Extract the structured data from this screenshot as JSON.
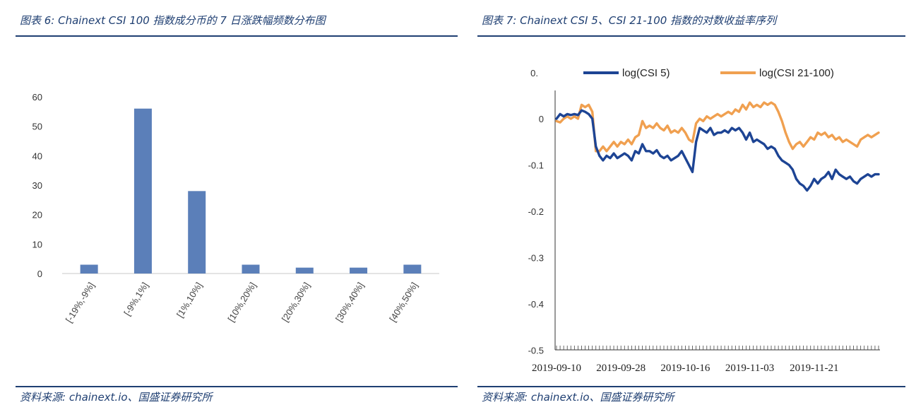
{
  "figures": [
    {
      "title": "图表 6:  Chainext CSI 100 指数成分币的 7 日涨跌幅频数分布图",
      "source": "资料来源:  chainext.io、国盛证券研究所"
    },
    {
      "title": "图表 7:  Chainext CSI 5、CSI 21-100 指数的对数收益率序列",
      "source": "资料来源:  chainext.io、国盛证券研究所"
    }
  ],
  "colors": {
    "accent": "#1f3f72",
    "bar": "#5b7fb9",
    "csi5": "#1d4494",
    "csi21": "#f0a050"
  },
  "chart_data": [
    {
      "type": "bar",
      "categories": [
        "[-19%,-9%]",
        "[-9%,1%]",
        "[1%,10%]",
        "[10%,20%]",
        "[20%,30%]",
        "[30%,40%]",
        "[40%,50%]"
      ],
      "values": [
        3,
        56,
        28,
        3,
        2,
        2,
        3
      ],
      "ylim": [
        0,
        60
      ],
      "yticks": [
        "0",
        "10",
        "20",
        "30",
        "40",
        "50",
        "60"
      ],
      "grid": false
    },
    {
      "type": "line",
      "ylim": [
        -0.5,
        0.05
      ],
      "yticks": [
        "-0.5",
        "-0.4",
        "-0.3",
        "-0.2",
        "-0.1",
        "0"
      ],
      "top_tick_label": "0.",
      "xticks": [
        "2019-09-10",
        "2019-09-28",
        "2019-10-16",
        "2019-11-03",
        "2019-11-21"
      ],
      "legend_position": "top",
      "grid": false,
      "series": [
        {
          "name": "log(CSI 5)",
          "x": [
            0,
            1,
            2,
            3,
            4,
            5,
            6,
            7,
            8,
            9,
            10,
            11,
            12,
            13,
            14,
            15,
            16,
            17,
            18,
            19,
            20,
            21,
            22,
            23,
            24,
            25,
            26,
            27,
            28,
            29,
            30,
            31,
            32,
            33,
            34,
            35,
            36,
            37,
            38,
            39,
            40,
            41,
            42,
            43,
            44,
            45,
            46,
            47,
            48,
            49,
            50,
            51,
            52,
            53,
            54,
            55,
            56,
            57,
            58,
            59,
            60,
            61,
            62,
            63,
            64,
            65,
            66,
            67,
            68,
            69,
            70,
            71,
            72,
            73,
            74,
            75,
            76,
            77,
            78,
            79,
            80,
            81,
            82,
            83,
            84,
            85,
            86,
            87,
            88,
            89,
            90
          ],
          "values": [
            0.0,
            0.01,
            0.005,
            0.01,
            0.008,
            0.01,
            0.008,
            0.018,
            0.015,
            0.01,
            0.0,
            -0.06,
            -0.08,
            -0.09,
            -0.08,
            -0.085,
            -0.075,
            -0.085,
            -0.08,
            -0.075,
            -0.08,
            -0.09,
            -0.07,
            -0.075,
            -0.055,
            -0.07,
            -0.07,
            -0.075,
            -0.068,
            -0.08,
            -0.085,
            -0.08,
            -0.09,
            -0.085,
            -0.08,
            -0.07,
            -0.085,
            -0.1,
            -0.115,
            -0.05,
            -0.02,
            -0.025,
            -0.03,
            -0.02,
            -0.035,
            -0.03,
            -0.03,
            -0.025,
            -0.03,
            -0.02,
            -0.025,
            -0.02,
            -0.03,
            -0.045,
            -0.03,
            -0.05,
            -0.045,
            -0.05,
            -0.055,
            -0.065,
            -0.06,
            -0.065,
            -0.08,
            -0.09,
            -0.095,
            -0.1,
            -0.11,
            -0.13,
            -0.14,
            -0.145,
            -0.155,
            -0.145,
            -0.13,
            -0.14,
            -0.13,
            -0.125,
            -0.115,
            -0.13,
            -0.11,
            -0.12,
            -0.125,
            -0.13,
            -0.125,
            -0.135,
            -0.14,
            -0.13,
            -0.125,
            -0.12,
            -0.125,
            -0.12,
            -0.12
          ]
        },
        {
          "name": "log(CSI 21-100)",
          "x": [
            0,
            1,
            2,
            3,
            4,
            5,
            6,
            7,
            8,
            9,
            10,
            11,
            12,
            13,
            14,
            15,
            16,
            17,
            18,
            19,
            20,
            21,
            22,
            23,
            24,
            25,
            26,
            27,
            28,
            29,
            30,
            31,
            32,
            33,
            34,
            35,
            36,
            37,
            38,
            39,
            40,
            41,
            42,
            43,
            44,
            45,
            46,
            47,
            48,
            49,
            50,
            51,
            52,
            53,
            54,
            55,
            56,
            57,
            58,
            59,
            60,
            61,
            62,
            63,
            64,
            65,
            66,
            67,
            68,
            69,
            70,
            71,
            72,
            73,
            74,
            75,
            76,
            77,
            78,
            79,
            80,
            81,
            82,
            83,
            84,
            85,
            86,
            87,
            88,
            89,
            90
          ],
          "values": [
            -0.005,
            -0.008,
            0.0,
            0.005,
            0.0,
            0.005,
            0.0,
            0.03,
            0.025,
            0.03,
            0.015,
            -0.07,
            -0.07,
            -0.06,
            -0.07,
            -0.06,
            -0.05,
            -0.06,
            -0.05,
            -0.055,
            -0.045,
            -0.055,
            -0.04,
            -0.035,
            -0.005,
            -0.02,
            -0.015,
            -0.02,
            -0.01,
            -0.02,
            -0.025,
            -0.015,
            -0.03,
            -0.025,
            -0.03,
            -0.02,
            -0.03,
            -0.045,
            -0.05,
            -0.01,
            0.0,
            -0.005,
            0.005,
            0.0,
            0.005,
            0.01,
            0.005,
            0.01,
            0.015,
            0.01,
            0.02,
            0.015,
            0.03,
            0.02,
            0.035,
            0.025,
            0.03,
            0.025,
            0.035,
            0.03,
            0.035,
            0.03,
            0.015,
            -0.005,
            -0.03,
            -0.05,
            -0.065,
            -0.055,
            -0.05,
            -0.06,
            -0.05,
            -0.04,
            -0.045,
            -0.03,
            -0.035,
            -0.03,
            -0.04,
            -0.035,
            -0.045,
            -0.04,
            -0.05,
            -0.045,
            -0.05,
            -0.055,
            -0.06,
            -0.045,
            -0.04,
            -0.035,
            -0.04,
            -0.035,
            -0.03
          ]
        }
      ]
    }
  ]
}
